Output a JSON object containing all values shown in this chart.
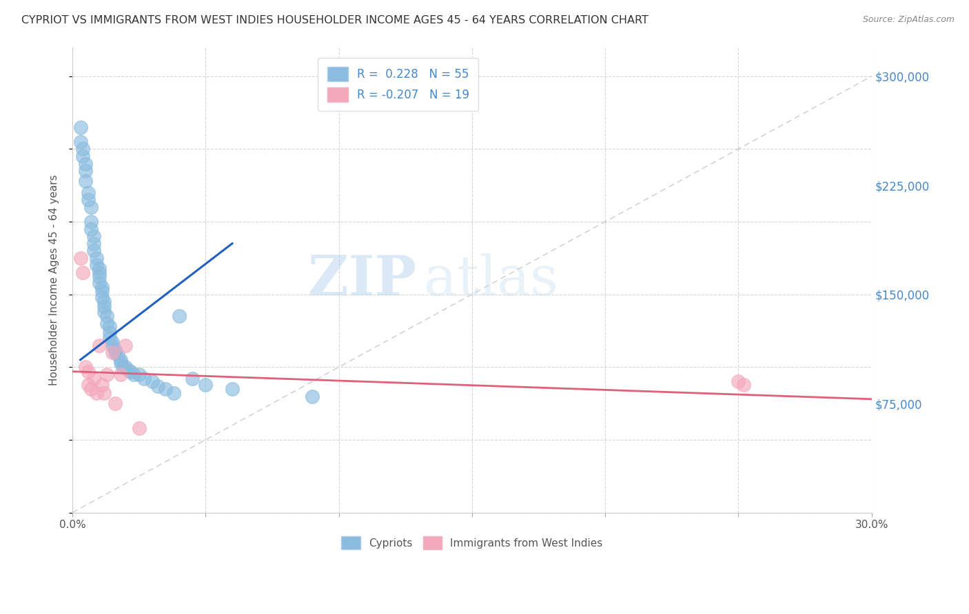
{
  "title": "CYPRIOT VS IMMIGRANTS FROM WEST INDIES HOUSEHOLDER INCOME AGES 45 - 64 YEARS CORRELATION CHART",
  "source": "Source: ZipAtlas.com",
  "ylabel": "Householder Income Ages 45 - 64 years",
  "xlim": [
    0.0,
    0.3
  ],
  "ylim": [
    0,
    320000
  ],
  "yticks": [
    75000,
    150000,
    225000,
    300000
  ],
  "ytick_labels": [
    "$75,000",
    "$150,000",
    "$225,000",
    "$300,000"
  ],
  "xticks": [
    0.0,
    0.05,
    0.1,
    0.15,
    0.2,
    0.25,
    0.3
  ],
  "xtick_labels": [
    "0.0%",
    "",
    "",
    "",
    "",
    "",
    "30.0%"
  ],
  "legend_r1": "R =  0.228",
  "legend_n1": "N = 55",
  "legend_r2": "R = -0.207",
  "legend_n2": "N = 19",
  "cypriot_color": "#8bbcdf",
  "westindies_color": "#f4a8bc",
  "cypriot_line_color": "#2060c0",
  "westindies_line_color": "#e0607a",
  "diagonal_color": "#aaaaaa",
  "background": "#ffffff",
  "watermark_zip": "ZIP",
  "watermark_atlas": "atlas",
  "cypriot_x": [
    0.003,
    0.003,
    0.004,
    0.004,
    0.005,
    0.005,
    0.005,
    0.006,
    0.006,
    0.007,
    0.007,
    0.007,
    0.008,
    0.008,
    0.008,
    0.009,
    0.009,
    0.01,
    0.01,
    0.01,
    0.01,
    0.011,
    0.011,
    0.011,
    0.012,
    0.012,
    0.012,
    0.013,
    0.013,
    0.014,
    0.014,
    0.014,
    0.015,
    0.015,
    0.016,
    0.016,
    0.017,
    0.018,
    0.018,
    0.019,
    0.02,
    0.021,
    0.022,
    0.023,
    0.025,
    0.027,
    0.03,
    0.032,
    0.035,
    0.038,
    0.04,
    0.045,
    0.05,
    0.06,
    0.09
  ],
  "cypriot_y": [
    265000,
    255000,
    250000,
    245000,
    240000,
    235000,
    228000,
    220000,
    215000,
    210000,
    200000,
    195000,
    190000,
    185000,
    180000,
    175000,
    170000,
    168000,
    165000,
    162000,
    158000,
    155000,
    152000,
    148000,
    145000,
    142000,
    138000,
    135000,
    130000,
    128000,
    124000,
    120000,
    117000,
    115000,
    112000,
    110000,
    108000,
    105000,
    103000,
    100000,
    100000,
    98000,
    97000,
    95000,
    95000,
    92000,
    90000,
    87000,
    85000,
    82000,
    135000,
    92000,
    88000,
    85000,
    80000
  ],
  "westindies_x": [
    0.003,
    0.004,
    0.005,
    0.006,
    0.006,
    0.007,
    0.008,
    0.009,
    0.01,
    0.011,
    0.012,
    0.013,
    0.015,
    0.016,
    0.018,
    0.02,
    0.025,
    0.25,
    0.252
  ],
  "westindies_y": [
    175000,
    165000,
    100000,
    97000,
    88000,
    85000,
    92000,
    82000,
    115000,
    88000,
    82000,
    95000,
    110000,
    75000,
    95000,
    115000,
    58000,
    90000,
    88000
  ],
  "blue_line_x": [
    0.003,
    0.06
  ],
  "blue_line_y": [
    105000,
    185000
  ],
  "pink_line_x": [
    0.0,
    0.3
  ],
  "pink_line_y": [
    97000,
    78000
  ]
}
